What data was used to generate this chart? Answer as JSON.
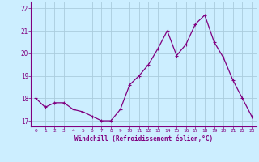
{
  "x": [
    0,
    1,
    2,
    3,
    4,
    5,
    6,
    7,
    8,
    9,
    10,
    11,
    12,
    13,
    14,
    15,
    16,
    17,
    18,
    19,
    20,
    21,
    22,
    23
  ],
  "y": [
    18.0,
    17.6,
    17.8,
    17.8,
    17.5,
    17.4,
    17.2,
    17.0,
    17.0,
    17.5,
    18.6,
    19.0,
    19.5,
    20.2,
    21.0,
    19.9,
    20.4,
    21.3,
    21.7,
    20.5,
    19.8,
    18.8,
    18.0,
    17.2
  ],
  "line_color": "#800080",
  "marker": "+",
  "bg_color": "#cceeff",
  "grid_color": "#aaccdd",
  "xlabel": "Windchill (Refroidissement éolien,°C)",
  "ylabel_ticks": [
    17,
    18,
    19,
    20,
    21,
    22
  ],
  "xlim": [
    -0.5,
    23.5
  ],
  "ylim": [
    16.75,
    22.3
  ],
  "xlabel_color": "#800080",
  "tick_color": "#800080",
  "spine_color": "#800080"
}
